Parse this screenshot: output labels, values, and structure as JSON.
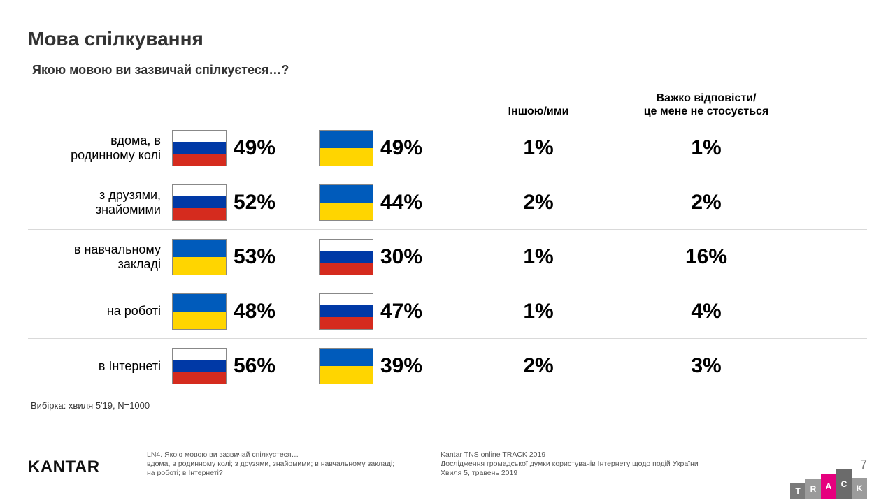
{
  "title": "Мова спілкування",
  "subtitle": "Якою мовою ви зазвичай спілкуєтеся…?",
  "headers": {
    "other": "Іншою/ими",
    "hard": "Важко відповісти/\nце мене не стосується"
  },
  "flag_colors": {
    "russia": [
      "#ffffff",
      "#0039a6",
      "#d52b1e"
    ],
    "ukraine": [
      "#005bbb",
      "#ffd500"
    ]
  },
  "rows": [
    {
      "label": "вдома, в\nродинному колі",
      "flag1": "russia",
      "pct1": "49%",
      "flag2": "ukraine",
      "pct2": "49%",
      "other": "1%",
      "hard": "1%"
    },
    {
      "label": "з друзями,\nзнайомими",
      "flag1": "russia",
      "pct1": "52%",
      "flag2": "ukraine",
      "pct2": "44%",
      "other": "2%",
      "hard": "2%"
    },
    {
      "label": "в навчальному\nзакладі",
      "flag1": "ukraine",
      "pct1": "53%",
      "flag2": "russia",
      "pct2": "30%",
      "other": "1%",
      "hard": "16%"
    },
    {
      "label": "на роботі",
      "flag1": "ukraine",
      "pct1": "48%",
      "flag2": "russia",
      "pct2": "47%",
      "other": "1%",
      "hard": "4%"
    },
    {
      "label": "в Інтернеті",
      "flag1": "russia",
      "pct1": "56%",
      "flag2": "ukraine",
      "pct2": "39%",
      "other": "2%",
      "hard": "3%"
    }
  ],
  "sample_note": "Вибірка: хвиля 5'19, N=1000",
  "footnote": "LN4. Якою мовою ви зазвичай спілкуєтеся…\nвдома, в родинному колі; з друзями, знайомими; в навчальному закладі;\nна роботі; в Інтернеті?",
  "source": "Kantar TNS online TRACK 2019\nДослідження громадської думки користувачів Інтернету щодо подій України\nХвиля 5, травень 2019",
  "page_number": "7",
  "logo_text": "KANTAR",
  "track_logo": {
    "letters": [
      "T",
      "R",
      "A",
      "C",
      "K"
    ],
    "colors": [
      "#7a7a7a",
      "#9b9b9b",
      "#e6007e",
      "#6b6b6b",
      "#9b9b9b"
    ],
    "heights": [
      22,
      28,
      36,
      42,
      30
    ]
  },
  "style": {
    "title_fontsize": 28,
    "pct_fontsize": 30,
    "row_label_fontsize": 18,
    "header_fontsize": 16,
    "divider_color": "#d9d9d9",
    "text_color": "#000000",
    "background": "#ffffff"
  }
}
